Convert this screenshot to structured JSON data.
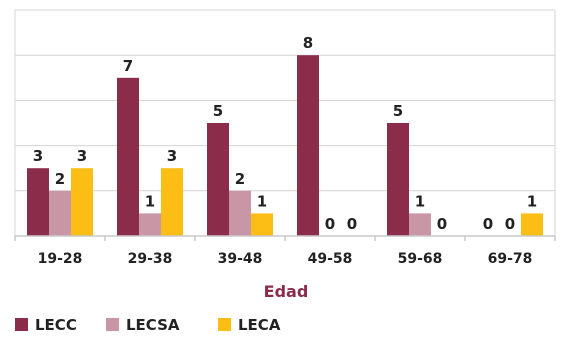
{
  "chart_data": {
    "type": "bar",
    "xlabel": "Edad",
    "ylabel": "",
    "ylim": [
      0,
      10
    ],
    "grid": true,
    "legend_position": "bottom",
    "categories": [
      "19-28",
      "29-38",
      "39-48",
      "49-58",
      "59-68",
      "69-78"
    ],
    "series": [
      {
        "name": "LECC",
        "values": [
          3,
          7,
          5,
          8,
          5,
          0
        ],
        "color": "#8b2c4b"
      },
      {
        "name": "LECSA",
        "values": [
          2,
          1,
          2,
          0,
          1,
          0
        ],
        "color": "#c996a6"
      },
      {
        "name": "LECA",
        "values": [
          3,
          3,
          1,
          0,
          0,
          1
        ],
        "color": "#fcbe14"
      }
    ],
    "xlabel_color": "#8b2c4b"
  }
}
